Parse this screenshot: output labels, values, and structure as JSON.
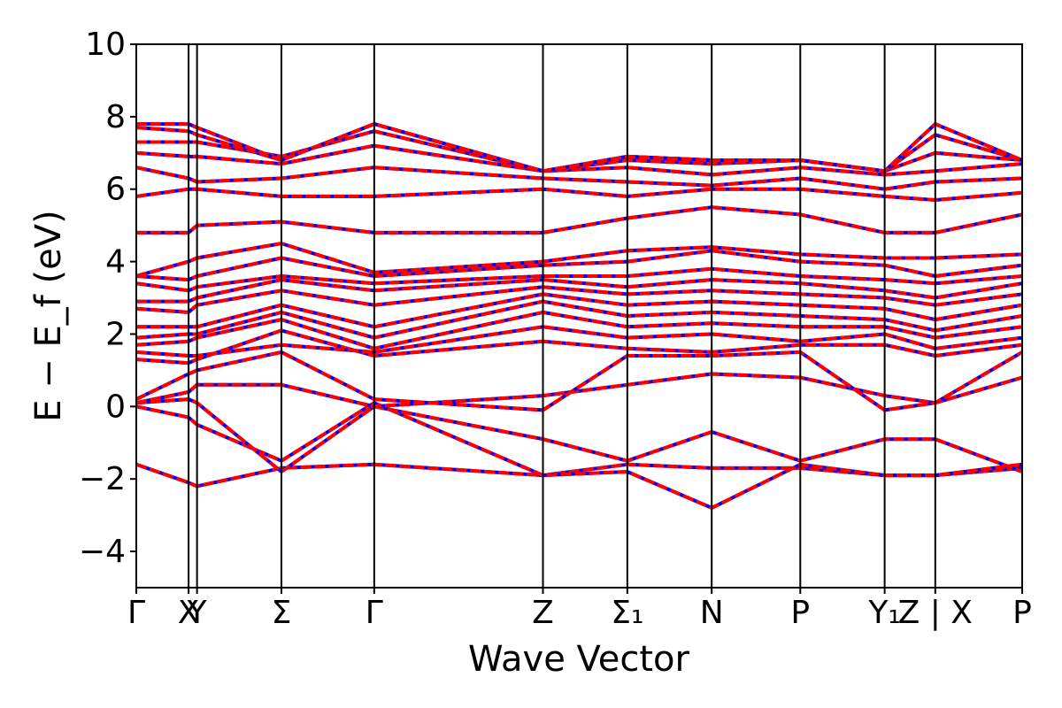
{
  "chart_data": {
    "type": "line",
    "title": "",
    "xlabel": "Wave Vector",
    "ylabel": "E − E_f (eV)",
    "ylim": [
      -5,
      10
    ],
    "yticks": [
      -4,
      -2,
      0,
      2,
      4,
      6,
      8,
      10
    ],
    "ytick_labels": [
      "−4",
      "−2",
      "0",
      "2",
      "4",
      "6",
      "8",
      "10"
    ],
    "xlim": [
      0,
      10.5
    ],
    "high_symmetry_points": [
      {
        "pos": 0.0,
        "label": "Γ"
      },
      {
        "pos": 0.62,
        "label": "X"
      },
      {
        "pos": 0.72,
        "label": "Y"
      },
      {
        "pos": 1.72,
        "label": "Σ"
      },
      {
        "pos": 2.82,
        "label": "Γ"
      },
      {
        "pos": 4.82,
        "label": "Z"
      },
      {
        "pos": 5.82,
        "label": "Σ₁"
      },
      {
        "pos": 6.82,
        "label": "N"
      },
      {
        "pos": 7.87,
        "label": "P"
      },
      {
        "pos": 8.87,
        "label": "Y₁"
      },
      {
        "pos": 9.47,
        "label": "Z | X"
      },
      {
        "pos": 10.5,
        "label": "P"
      }
    ],
    "grid": false,
    "legend": "none",
    "line_colors": [
      "#0000ff",
      "#ff0000"
    ],
    "line_style": "blue solid band overlaid by red dashed band",
    "bands": [
      {
        "x": [
          0,
          0.62,
          0.72,
          1.72,
          2.82,
          4.82,
          5.82,
          6.82,
          7.87,
          8.87,
          9.47,
          10.5
        ],
        "y": [
          -1.6,
          -2.1,
          -2.2,
          -1.7,
          -1.6,
          -1.9,
          -1.6,
          -1.7,
          -1.7,
          -1.9,
          -1.9,
          -1.7
        ]
      },
      {
        "x": [
          0,
          0.62,
          0.72,
          1.72,
          2.82,
          4.82,
          5.82,
          6.82,
          7.87,
          8.87,
          9.47,
          10.5
        ],
        "y": [
          0.0,
          -0.3,
          -0.5,
          -1.5,
          0.1,
          -1.9,
          -1.8,
          -2.8,
          -1.6,
          -1.9,
          -1.9,
          -1.6
        ]
      },
      {
        "x": [
          0,
          0.62,
          0.72,
          1.72,
          2.82,
          4.82,
          5.82,
          6.82,
          7.87,
          8.87,
          9.47,
          10.5
        ],
        "y": [
          0.1,
          0.2,
          0.1,
          -1.8,
          0.0,
          -0.9,
          -1.5,
          -0.7,
          -1.5,
          -0.9,
          -0.9,
          -1.8
        ]
      },
      {
        "x": [
          0,
          0.62,
          0.72,
          1.72,
          2.82,
          4.82,
          5.82,
          6.82,
          7.87,
          8.87,
          9.47,
          10.5
        ],
        "y": [
          0.1,
          0.4,
          0.6,
          0.6,
          0.0,
          0.3,
          0.6,
          0.9,
          0.8,
          0.3,
          0.1,
          0.8
        ]
      },
      {
        "x": [
          0,
          0.62,
          0.72,
          1.72,
          2.82,
          4.82,
          5.82,
          6.82,
          7.87,
          8.87,
          9.47,
          10.5
        ],
        "y": [
          0.2,
          0.9,
          1.0,
          1.5,
          0.2,
          -0.1,
          1.4,
          1.4,
          1.5,
          -0.1,
          0.1,
          1.5
        ]
      },
      {
        "x": [
          0,
          0.62,
          0.72,
          1.72,
          2.82,
          4.82,
          5.82,
          6.82,
          7.87,
          8.87,
          9.47,
          10.5
        ],
        "y": [
          1.3,
          1.2,
          1.3,
          2.1,
          1.4,
          1.8,
          1.6,
          1.5,
          1.7,
          1.7,
          1.4,
          1.7
        ]
      },
      {
        "x": [
          0,
          0.62,
          0.72,
          1.72,
          2.82,
          4.82,
          5.82,
          6.82,
          7.87,
          8.87,
          9.47,
          10.5
        ],
        "y": [
          1.5,
          1.4,
          1.4,
          1.7,
          1.5,
          2.2,
          1.9,
          2.0,
          1.8,
          2.0,
          1.6,
          1.9
        ]
      },
      {
        "x": [
          0,
          0.62,
          0.72,
          1.72,
          2.82,
          4.82,
          5.82,
          6.82,
          7.87,
          8.87,
          9.47,
          10.5
        ],
        "y": [
          1.7,
          1.8,
          1.9,
          2.4,
          1.6,
          2.6,
          2.2,
          2.3,
          2.2,
          2.2,
          1.9,
          2.2
        ]
      },
      {
        "x": [
          0,
          0.62,
          0.72,
          1.72,
          2.82,
          4.82,
          5.82,
          6.82,
          7.87,
          8.87,
          9.47,
          10.5
        ],
        "y": [
          1.9,
          2.0,
          2.0,
          2.6,
          1.9,
          2.9,
          2.5,
          2.6,
          2.5,
          2.4,
          2.1,
          2.5
        ]
      },
      {
        "x": [
          0,
          0.62,
          0.72,
          1.72,
          2.82,
          4.82,
          5.82,
          6.82,
          7.87,
          8.87,
          9.47,
          10.5
        ],
        "y": [
          2.2,
          2.2,
          2.2,
          2.8,
          2.2,
          3.1,
          2.8,
          2.9,
          2.8,
          2.7,
          2.4,
          2.8
        ]
      },
      {
        "x": [
          0,
          0.62,
          0.72,
          1.72,
          2.82,
          4.82,
          5.82,
          6.82,
          7.87,
          8.87,
          9.47,
          10.5
        ],
        "y": [
          2.7,
          2.6,
          2.8,
          3.2,
          2.8,
          3.3,
          3.1,
          3.2,
          3.1,
          3.0,
          2.8,
          3.1
        ]
      },
      {
        "x": [
          0,
          0.62,
          0.72,
          1.72,
          2.82,
          4.82,
          5.82,
          6.82,
          7.87,
          8.87,
          9.47,
          10.5
        ],
        "y": [
          2.9,
          2.9,
          3.0,
          3.5,
          3.2,
          3.5,
          3.3,
          3.5,
          3.4,
          3.2,
          3.0,
          3.4
        ]
      },
      {
        "x": [
          0,
          0.62,
          0.72,
          1.72,
          2.82,
          4.82,
          5.82,
          6.82,
          7.87,
          8.87,
          9.47,
          10.5
        ],
        "y": [
          3.4,
          3.2,
          3.3,
          3.6,
          3.4,
          3.6,
          3.6,
          3.8,
          3.6,
          3.5,
          3.4,
          3.6
        ]
      },
      {
        "x": [
          0,
          0.62,
          0.72,
          1.72,
          2.82,
          4.82,
          5.82,
          6.82,
          7.87,
          8.87,
          9.47,
          10.5
        ],
        "y": [
          3.6,
          3.5,
          3.6,
          4.1,
          3.6,
          3.9,
          4.0,
          4.3,
          4.0,
          3.9,
          3.6,
          3.9
        ]
      },
      {
        "x": [
          0,
          0.62,
          0.72,
          1.72,
          2.82,
          4.82,
          5.82,
          6.82,
          7.87,
          8.87,
          9.47,
          10.5
        ],
        "y": [
          3.6,
          4.0,
          4.1,
          4.5,
          3.7,
          4.0,
          4.3,
          4.4,
          4.2,
          4.1,
          4.1,
          4.2
        ]
      },
      {
        "x": [
          0,
          0.62,
          0.72,
          1.72,
          2.82,
          4.82,
          5.82,
          6.82,
          7.87,
          8.87,
          9.47,
          10.5
        ],
        "y": [
          4.8,
          4.8,
          5.0,
          5.1,
          4.8,
          4.8,
          5.2,
          5.5,
          5.3,
          4.8,
          4.8,
          5.3
        ]
      },
      {
        "x": [
          0,
          0.62,
          0.72,
          1.72,
          2.82,
          4.82,
          5.82,
          6.82,
          7.87,
          8.87,
          9.47,
          10.5
        ],
        "y": [
          5.8,
          6.0,
          6.0,
          5.8,
          5.8,
          6.0,
          5.8,
          6.0,
          6.0,
          5.8,
          5.7,
          5.9
        ]
      },
      {
        "x": [
          0,
          0.62,
          0.72,
          1.72,
          2.82,
          4.82,
          5.82,
          6.82,
          7.87,
          8.87,
          9.47,
          10.5
        ],
        "y": [
          6.6,
          6.3,
          6.2,
          6.3,
          6.6,
          6.3,
          6.2,
          6.1,
          6.3,
          6.0,
          6.2,
          6.3
        ]
      },
      {
        "x": [
          0,
          0.62,
          0.72,
          1.72,
          2.82,
          4.82,
          5.82,
          6.82,
          7.87,
          8.87,
          9.47,
          10.5
        ],
        "y": [
          7.0,
          6.9,
          6.9,
          6.7,
          7.2,
          6.5,
          6.6,
          6.4,
          6.6,
          6.4,
          6.5,
          6.7
        ]
      },
      {
        "x": [
          0,
          0.62,
          0.72,
          1.72,
          2.82,
          4.82,
          5.82,
          6.82,
          7.87,
          8.87,
          9.47,
          10.5
        ],
        "y": [
          7.3,
          7.3,
          7.3,
          6.9,
          7.6,
          6.5,
          6.8,
          6.7,
          6.8,
          6.5,
          7.0,
          6.8
        ]
      },
      {
        "x": [
          0,
          0.62,
          0.72,
          1.72,
          2.82,
          4.82,
          5.82,
          6.82,
          7.87,
          8.87,
          9.47,
          10.5
        ],
        "y": [
          7.7,
          7.6,
          7.5,
          6.8,
          7.8,
          6.5,
          6.9,
          6.8,
          6.8,
          6.5,
          7.5,
          6.8
        ]
      },
      {
        "x": [
          0,
          0.62,
          0.72,
          1.72,
          2.82,
          4.82,
          5.82,
          6.82,
          7.87,
          8.87,
          9.47,
          10.5
        ],
        "y": [
          7.8,
          7.8,
          7.7,
          6.8,
          7.8,
          6.5,
          6.9,
          6.8,
          6.8,
          6.5,
          7.8,
          6.8
        ]
      }
    ]
  }
}
